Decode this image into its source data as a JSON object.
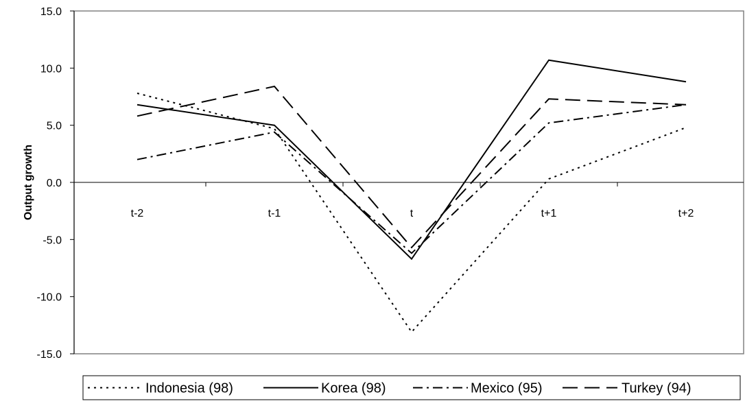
{
  "chart_data": {
    "type": "line",
    "title": "",
    "xlabel": "",
    "ylabel": "Output growth",
    "categories": [
      "t-2",
      "t-1",
      "t",
      "t+1",
      "t+2"
    ],
    "ylim": [
      -15,
      15
    ],
    "y_ticks": [
      15,
      10,
      5,
      0,
      -5,
      -10,
      -15
    ],
    "y_tick_labels": [
      "15.0",
      "10.0",
      "5.0",
      "0.0",
      "-5.0",
      "-10.0",
      "-15.0"
    ],
    "grid": false,
    "legend_position": "bottom",
    "series": [
      {
        "name": "Indonesia (98)",
        "values": [
          7.8,
          4.7,
          -13.1,
          0.3,
          4.8
        ],
        "dash": "dotted",
        "color": "#000000"
      },
      {
        "name": "Korea (98)",
        "values": [
          6.8,
          5.0,
          -6.7,
          10.7,
          8.8
        ],
        "dash": "solid",
        "color": "#000000"
      },
      {
        "name": "Mexico (95)",
        "values": [
          2.0,
          4.4,
          -6.2,
          5.2,
          6.8
        ],
        "dash": "dash-dot",
        "color": "#000000"
      },
      {
        "name": "Turkey (94)",
        "values": [
          5.8,
          8.4,
          -5.7,
          7.3,
          6.8
        ],
        "dash": "dashed",
        "color": "#000000"
      }
    ]
  }
}
